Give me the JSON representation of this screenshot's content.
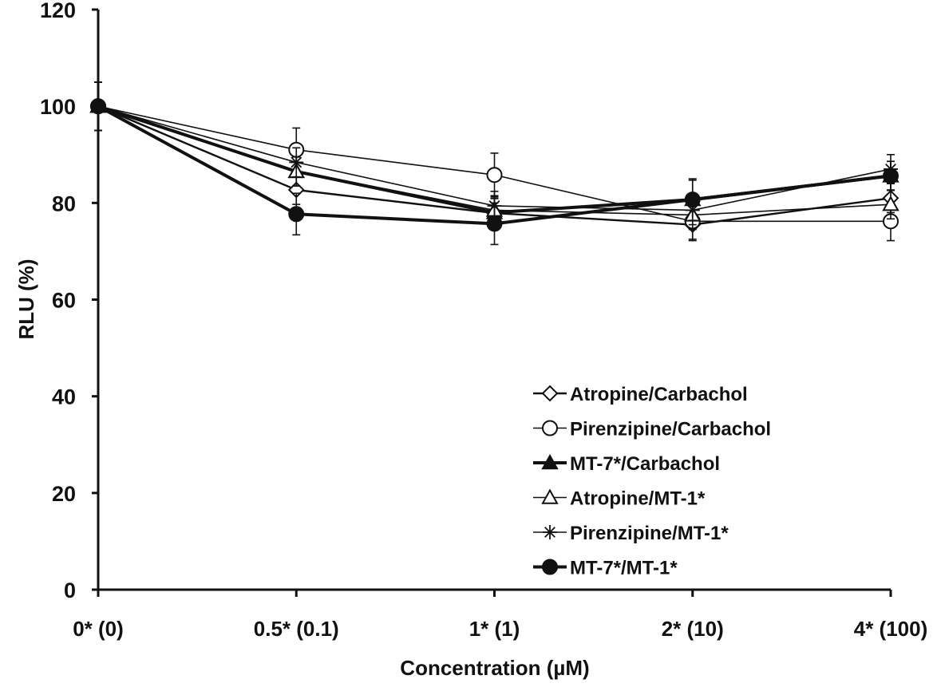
{
  "chart_data": {
    "type": "line",
    "title": "",
    "xlabel": "Concentration (µM)",
    "ylabel": "RLU (%)",
    "categories": [
      "0* (0)",
      "0.5* (0.1)",
      "1* (1)",
      "2* (10)",
      "4* (100)"
    ],
    "ylim": [
      0,
      120
    ],
    "yticks": [
      0,
      20,
      40,
      60,
      80,
      100,
      120
    ],
    "grid": false,
    "legend_position": "bottom-right",
    "series": [
      {
        "name": "Atropine/Carbachol",
        "marker": "diamond-open",
        "line": "medium",
        "values": [
          100,
          82.7,
          77.9,
          75.5,
          81
        ],
        "errors": [
          5,
          3,
          3,
          3,
          3
        ]
      },
      {
        "name": "Pirenzipine/Carbachol",
        "marker": "circle-open",
        "line": "thin",
        "values": [
          100,
          91,
          85.8,
          76.2,
          76.2
        ],
        "errors": [
          5,
          4.5,
          4.5,
          4,
          4
        ]
      },
      {
        "name": "MT-7*/Carbachol",
        "marker": "triangle-filled",
        "line": "thick",
        "values": [
          100,
          86.5,
          78,
          80.7,
          85.6
        ],
        "errors": [
          5,
          3,
          3,
          4,
          3
        ]
      },
      {
        "name": "Atropine/MT-1*",
        "marker": "triangle-open",
        "line": "thin",
        "values": [
          100,
          86.5,
          78.5,
          77.5,
          79.7
        ],
        "errors": [
          5,
          3,
          3,
          3,
          3
        ]
      },
      {
        "name": "Pirenzipine/MT-1*",
        "marker": "star",
        "line": "thin",
        "values": [
          100,
          88.4,
          79.4,
          78.5,
          87
        ],
        "errors": [
          5,
          3,
          3,
          3,
          3
        ]
      },
      {
        "name": "MT-7*/MT-1*",
        "marker": "circle-filled",
        "line": "thick",
        "values": [
          100,
          77.7,
          75.7,
          80.7,
          85.6
        ],
        "errors": [
          5,
          4.3,
          4.3,
          4.3,
          3
        ]
      }
    ]
  }
}
